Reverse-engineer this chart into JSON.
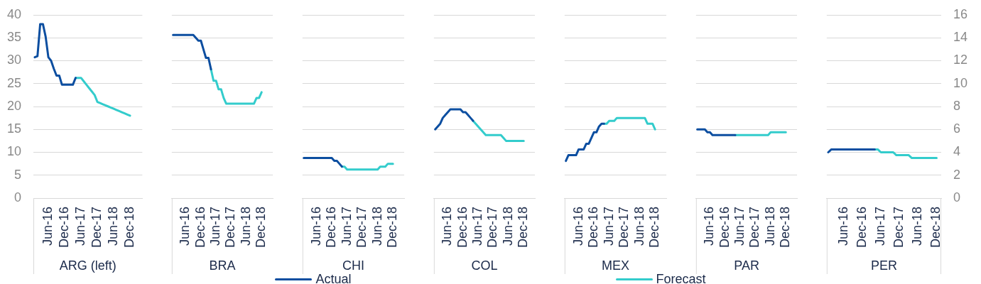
{
  "chart_data": [
    {
      "type": "line",
      "xlabel": "ARG (left)",
      "categories": [
        null,
        null,
        null,
        null,
        null,
        "Jun-16",
        null,
        null,
        null,
        null,
        null,
        "Dec-16",
        null,
        null,
        null,
        null,
        null,
        "Jun-17",
        null,
        null,
        null,
        null,
        null,
        "Dec-17",
        null,
        null,
        null,
        null,
        null,
        "Jun-18",
        null,
        null,
        null,
        null,
        null,
        "Dec-18",
        null,
        null,
        null,
        null
      ],
      "ylim": [
        0,
        40
      ],
      "yticks": [
        0,
        5,
        10,
        15,
        20,
        25,
        30,
        35,
        40
      ],
      "grid": "y",
      "legend": "bottom",
      "series": [
        {
          "name": "Actual",
          "color": "#0c4ea0",
          "values": [
            30.75,
            31,
            38,
            38,
            35.25,
            30.75,
            30,
            28.25,
            26.75,
            26.75,
            24.75,
            24.75,
            24.75,
            24.75,
            24.75,
            26.25,
            null,
            null,
            null,
            null,
            null,
            null,
            null,
            null,
            null,
            null,
            null,
            null,
            null,
            null,
            null,
            null,
            null,
            null,
            null,
            null,
            null,
            null,
            null,
            null
          ]
        },
        {
          "name": "Forecast",
          "color": "#33cccc",
          "values": [
            null,
            null,
            null,
            null,
            null,
            null,
            null,
            null,
            null,
            null,
            null,
            null,
            null,
            null,
            null,
            26.25,
            26.25,
            26.25,
            25.5,
            24.75,
            24,
            23.25,
            22.5,
            21,
            20.75,
            20.5,
            20.25,
            20,
            19.75,
            19.5,
            19.25,
            19,
            18.75,
            18.5,
            18.25,
            18,
            null,
            null,
            null,
            null
          ]
        }
      ]
    },
    {
      "type": "line",
      "xlabel": "BRA",
      "categories": [
        null,
        null,
        null,
        null,
        null,
        "Jun-16",
        null,
        null,
        null,
        null,
        null,
        "Dec-16",
        null,
        null,
        null,
        null,
        null,
        "Jun-17",
        null,
        null,
        null,
        null,
        null,
        "Dec-17",
        null,
        null,
        null,
        null,
        null,
        "Jun-18",
        null,
        null,
        null,
        null,
        null,
        "Dec-18",
        null,
        null,
        null,
        null
      ],
      "y2lim": [
        0,
        16
      ],
      "y2ticks": [
        0,
        2,
        4,
        6,
        8,
        10,
        12,
        14,
        16
      ],
      "grid": "y",
      "tick_labels": "x",
      "series": [
        {
          "name": "Actual",
          "color": "#0c4ea0",
          "axis": "y2",
          "values": [
            14.25,
            14.25,
            14.25,
            14.25,
            14.25,
            14.25,
            14.25,
            14.25,
            14.25,
            14,
            13.75,
            13.75,
            13,
            12.25,
            12.25,
            11.25,
            null,
            null,
            null,
            null,
            null,
            null,
            null,
            null,
            null,
            null,
            null,
            null,
            null,
            null,
            null,
            null,
            null,
            null,
            null,
            null,
            null,
            null,
            null,
            null
          ]
        },
        {
          "name": "Forecast",
          "color": "#33cccc",
          "axis": "y2",
          "values": [
            null,
            null,
            null,
            null,
            null,
            null,
            null,
            null,
            null,
            null,
            null,
            null,
            null,
            null,
            null,
            11.25,
            10.25,
            10.25,
            9.5,
            9.5,
            8.75,
            8.25,
            8.25,
            8.25,
            8.25,
            8.25,
            8.25,
            8.25,
            8.25,
            8.25,
            8.25,
            8.25,
            8.25,
            8.75,
            8.75,
            9.25,
            null,
            null,
            null,
            null
          ]
        }
      ]
    },
    {
      "type": "line",
      "xlabel": "CHI",
      "categories": [
        null,
        null,
        null,
        null,
        null,
        "Jun-16",
        null,
        null,
        null,
        null,
        null,
        "Dec-16",
        null,
        null,
        null,
        null,
        null,
        "Jun-17",
        null,
        null,
        null,
        null,
        null,
        "Dec-17",
        null,
        null,
        null,
        null,
        null,
        "Jun-18",
        null,
        null,
        null,
        null,
        null,
        "Dec-18",
        null,
        null,
        null,
        null
      ],
      "y2lim": [
        0,
        16
      ],
      "y2ticks": [
        0,
        2,
        4,
        6,
        8,
        10,
        12,
        14,
        16
      ],
      "grid": "y",
      "tick_labels": "x",
      "series": [
        {
          "name": "Actual",
          "color": "#0c4ea0",
          "axis": "y2",
          "values": [
            3.5,
            3.5,
            3.5,
            3.5,
            3.5,
            3.5,
            3.5,
            3.5,
            3.5,
            3.5,
            3.5,
            3.5,
            3.25,
            3.25,
            3,
            2.75,
            null,
            null,
            null,
            null,
            null,
            null,
            null,
            null,
            null,
            null,
            null,
            null,
            null,
            null,
            null,
            null,
            null,
            null,
            null,
            null,
            null,
            null,
            null,
            null
          ]
        },
        {
          "name": "Forecast",
          "color": "#33cccc",
          "axis": "y2",
          "values": [
            null,
            null,
            null,
            null,
            null,
            null,
            null,
            null,
            null,
            null,
            null,
            null,
            null,
            null,
            null,
            2.75,
            2.75,
            2.5,
            2.5,
            2.5,
            2.5,
            2.5,
            2.5,
            2.5,
            2.5,
            2.5,
            2.5,
            2.5,
            2.5,
            2.5,
            2.75,
            2.75,
            2.75,
            3,
            3,
            3,
            null,
            null,
            null,
            null
          ]
        }
      ]
    },
    {
      "type": "line",
      "xlabel": "COL",
      "categories": [
        null,
        null,
        null,
        null,
        null,
        "Jun-16",
        null,
        null,
        null,
        null,
        null,
        "Dec-16",
        null,
        null,
        null,
        null,
        null,
        "Jun-17",
        null,
        null,
        null,
        null,
        null,
        "Dec-17",
        null,
        null,
        null,
        null,
        null,
        "Jun-18",
        null,
        null,
        null,
        null,
        null,
        "Dec-18",
        null,
        null,
        null,
        null
      ],
      "y2lim": [
        0,
        16
      ],
      "y2ticks": [
        0,
        2,
        4,
        6,
        8,
        10,
        12,
        14,
        16
      ],
      "grid": "y",
      "tick_labels": "x",
      "series": [
        {
          "name": "Actual",
          "color": "#0c4ea0",
          "axis": "y2",
          "values": [
            6,
            6.25,
            6.5,
            7,
            7.25,
            7.5,
            7.75,
            7.75,
            7.75,
            7.75,
            7.75,
            7.5,
            7.5,
            7.25,
            7,
            6.75,
            null,
            null,
            null,
            null,
            null,
            null,
            null,
            null,
            null,
            null,
            null,
            null,
            null,
            null,
            null,
            null,
            null,
            null,
            null,
            null,
            null,
            null,
            null,
            null
          ]
        },
        {
          "name": "Forecast",
          "color": "#33cccc",
          "axis": "y2",
          "values": [
            null,
            null,
            null,
            null,
            null,
            null,
            null,
            null,
            null,
            null,
            null,
            null,
            null,
            null,
            null,
            6.75,
            6.5,
            6.25,
            6,
            5.75,
            5.5,
            5.5,
            5.5,
            5.5,
            5.5,
            5.5,
            5.5,
            5.25,
            5,
            5,
            5,
            5,
            5,
            5,
            5,
            5,
            null,
            null,
            null,
            null
          ]
        }
      ]
    },
    {
      "type": "line",
      "xlabel": "MEX",
      "categories": [
        null,
        null,
        null,
        null,
        null,
        "Jun-16",
        null,
        null,
        null,
        null,
        null,
        "Dec-16",
        null,
        null,
        null,
        null,
        null,
        "Jun-17",
        null,
        null,
        null,
        null,
        null,
        "Dec-17",
        null,
        null,
        null,
        null,
        null,
        "Jun-18",
        null,
        null,
        null,
        null,
        null,
        "Dec-18",
        null,
        null,
        null,
        null
      ],
      "y2lim": [
        0,
        16
      ],
      "y2ticks": [
        0,
        2,
        4,
        6,
        8,
        10,
        12,
        14,
        16
      ],
      "grid": "y",
      "tick_labels": "x",
      "series": [
        {
          "name": "Actual",
          "color": "#0c4ea0",
          "axis": "y2",
          "values": [
            3.25,
            3.75,
            3.75,
            3.75,
            3.75,
            4.25,
            4.25,
            4.25,
            4.75,
            4.75,
            5.25,
            5.75,
            5.75,
            6.25,
            6.5,
            6.5,
            null,
            null,
            null,
            null,
            null,
            null,
            null,
            null,
            null,
            null,
            null,
            null,
            null,
            null,
            null,
            null,
            null,
            null,
            null,
            null,
            null,
            null,
            null,
            null
          ]
        },
        {
          "name": "Forecast",
          "color": "#33cccc",
          "axis": "y2",
          "values": [
            null,
            null,
            null,
            null,
            null,
            null,
            null,
            null,
            null,
            null,
            null,
            null,
            null,
            null,
            null,
            6.5,
            6.5,
            6.75,
            6.75,
            6.75,
            7,
            7,
            7,
            7,
            7,
            7,
            7,
            7,
            7,
            7,
            7,
            7,
            6.5,
            6.5,
            6.5,
            6,
            null,
            null,
            null,
            null
          ]
        }
      ]
    },
    {
      "type": "line",
      "xlabel": "PAR",
      "categories": [
        null,
        null,
        null,
        null,
        null,
        "Jun-16",
        null,
        null,
        null,
        null,
        null,
        "Dec-16",
        null,
        null,
        null,
        null,
        null,
        "Jun-17",
        null,
        null,
        null,
        null,
        null,
        "Dec-17",
        null,
        null,
        null,
        null,
        null,
        "Jun-18",
        null,
        null,
        null,
        null,
        null,
        "Dec-18",
        null,
        null,
        null,
        null
      ],
      "y2lim": [
        0,
        16
      ],
      "y2ticks": [
        0,
        2,
        4,
        6,
        8,
        10,
        12,
        14,
        16
      ],
      "grid": "y",
      "tick_labels": "x",
      "series": [
        {
          "name": "Actual",
          "color": "#0c4ea0",
          "axis": "y2",
          "values": [
            6,
            6,
            6,
            6,
            5.75,
            5.75,
            5.5,
            5.5,
            5.5,
            5.5,
            5.5,
            5.5,
            5.5,
            5.5,
            5.5,
            5.5,
            null,
            null,
            null,
            null,
            null,
            null,
            null,
            null,
            null,
            null,
            null,
            null,
            null,
            null,
            null,
            null,
            null,
            null,
            null,
            null,
            null,
            null,
            null,
            null
          ]
        },
        {
          "name": "Forecast",
          "color": "#33cccc",
          "axis": "y2",
          "values": [
            null,
            null,
            null,
            null,
            null,
            null,
            null,
            null,
            null,
            null,
            null,
            null,
            null,
            null,
            null,
            5.5,
            5.5,
            5.5,
            5.5,
            5.5,
            5.5,
            5.5,
            5.5,
            5.5,
            5.5,
            5.5,
            5.5,
            5.5,
            5.5,
            5.75,
            5.75,
            5.75,
            5.75,
            5.75,
            5.75,
            5.75,
            null,
            null,
            null,
            null
          ]
        }
      ]
    },
    {
      "type": "line",
      "xlabel": "PER",
      "categories": [
        null,
        null,
        null,
        null,
        null,
        "Jun-16",
        null,
        null,
        null,
        null,
        null,
        "Dec-16",
        null,
        null,
        null,
        null,
        null,
        "Jun-17",
        null,
        null,
        null,
        null,
        null,
        "Dec-17",
        null,
        null,
        null,
        null,
        null,
        "Jun-18",
        null,
        null,
        null,
        null,
        null,
        "Dec-18",
        null
      ],
      "y2lim": [
        0,
        16
      ],
      "y2ticks": [
        0,
        2,
        4,
        6,
        8,
        10,
        12,
        14,
        16
      ],
      "grid": "y",
      "series": [
        {
          "name": "Actual",
          "color": "#0c4ea0",
          "axis": "y2",
          "values": [
            4,
            4.25,
            4.25,
            4.25,
            4.25,
            4.25,
            4.25,
            4.25,
            4.25,
            4.25,
            4.25,
            4.25,
            4.25,
            4.25,
            4.25,
            4.25,
            null,
            null,
            null,
            null,
            null,
            null,
            null,
            null,
            null,
            null,
            null,
            null,
            null,
            null,
            null,
            null,
            null,
            null,
            null,
            null,
            null
          ]
        },
        {
          "name": "Forecast",
          "color": "#33cccc",
          "axis": "y2",
          "values": [
            null,
            null,
            null,
            null,
            null,
            null,
            null,
            null,
            null,
            null,
            null,
            null,
            null,
            null,
            null,
            4.25,
            4.25,
            4,
            4,
            4,
            4,
            4,
            3.75,
            3.75,
            3.75,
            3.75,
            3.75,
            3.5,
            3.5,
            3.5,
            3.5,
            3.5,
            3.5,
            3.5,
            3.5,
            3.5,
            null
          ]
        }
      ]
    }
  ]
}
